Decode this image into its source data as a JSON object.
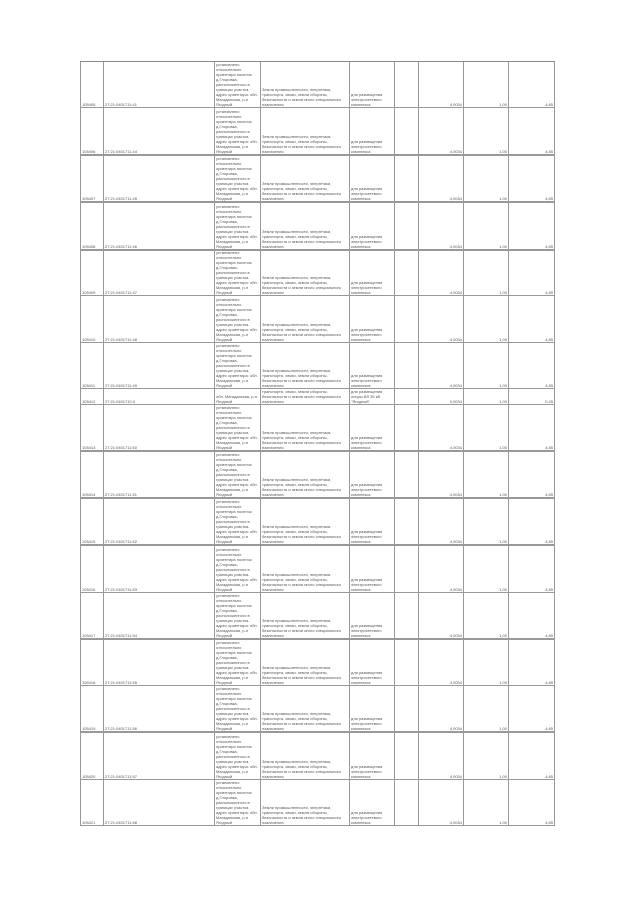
{
  "rows": [
    {
      "id": "105405",
      "cadastral": "27:21:0401711:41",
      "address": "установлено относительно ориентира поселок д.Глоровка, расположенного в границах участка. адрес ориентира: обл. Магаданская, р-н Ягодный",
      "category": "Земли промышленности, энергетики, транспорта, связи, земли обороны, безопасности и земли иного специального назначения",
      "use": "для размещения электросетевого комплекса",
      "area": "4,0034",
      "ratio": "1,00",
      "value": "4,85"
    },
    {
      "id": "105406",
      "cadastral": "27:21:0401711:44",
      "address": "установлено относительно ориентира поселок д.Глоровка, расположенного в границах участка. адрес ориентира: обл. Магаданская, р-н Ягодный",
      "category": "Земли промышленности, энергетики, транспорта, связи, земли обороны, безопасности и земли иного специального назначения",
      "use": "для размещения электросетевого комплекса",
      "area": "4,0034",
      "ratio": "1,00",
      "value": "4,85"
    },
    {
      "id": "105407",
      "cadastral": "27:21:0401711:45",
      "address": "установлено относительно ориентира поселок д.Глоровка, расположенного в границах участка. адрес ориентира: обл. Магаданская, р-н Ягодный",
      "category": "Земли промышленности, энергетики, транспорта, связи, земли обороны, безопасности и земли иного специального назначения",
      "use": "для размещения электросетевого комплекса",
      "area": "4,0034",
      "ratio": "1,00",
      "value": "4,85"
    },
    {
      "id": "105408",
      "cadastral": "27:21:0401711:46",
      "address": "установлено относительно ориентира поселок д.Глоровка, расположенного в границах участка. адрес ориентира: обл. Магаданская, р-н Ягодный",
      "category": "Земли промышленности, энергетики, транспорта, связи, земли обороны, безопасности и земли иного специального назначения",
      "use": "для размещения электросетевого комплекса",
      "area": "4,0034",
      "ratio": "1,00",
      "value": "4,85"
    },
    {
      "id": "105409",
      "cadastral": "27:21:0401711:47",
      "address": "установлено относительно ориентира поселок д.Глоровка, расположенного в границах участка. адрес ориентира: обл. Магаданская, р-н Ягодный",
      "category": "Земли промышленности, энергетики, транспорта, связи, земли обороны, безопасности и земли иного специального назначения",
      "use": "для размещения электросетевого комплекса",
      "area": "4,0034",
      "ratio": "1,00",
      "value": "4,85"
    },
    {
      "id": "105410",
      "cadastral": "27:21:0401711:48",
      "address": "установлено относительно ориентира поселок д.Глоровка, расположенного в границах участка. адрес ориентира: обл. Магаданская, р-н Ягодный",
      "category": "Земли промышленности, энергетики, транспорта, связи, земли обороны, безопасности и земли иного специального назначения",
      "use": "для размещения электросетевого комплекса",
      "area": "4,0034",
      "ratio": "1,00",
      "value": "4,85"
    },
    {
      "id": "105411",
      "cadastral": "27:21:0401711:49",
      "address": "установлено относительно ориентира поселок д.Глоровка, расположенного в границах участка. адрес ориентира: обл. Магаданская, р-н Ягодный",
      "category": "Земли промышленности, энергетики, транспорта, связи, земли обороны, безопасности и земли иного специального назначения",
      "use": "для размещения электросетевого комплекса",
      "area": "4,0034",
      "ratio": "1,00",
      "value": "4,85"
    },
    {
      "id": "105412",
      "cadastral": "27:21:0401710:3",
      "address": "обл. Магаданская, р-н Ягодный",
      "category": "Земли промышленности, энергетики, транспорта, связи, земли обороны, безопасности и земли иного специального назначения",
      "use": "для размещения опоры ВЛ 35 кВ \"Ягодный\"",
      "area": "0,0034",
      "ratio": "1,00",
      "value": "0,45"
    },
    {
      "id": "105413",
      "cadastral": "27:21:0401711:50",
      "address": "установлено относительно ориентира поселок д.Глоровка, расположенного в границах участка. адрес ориентира: обл. Магаданская, р-н Ягодный",
      "category": "Земли промышленности, энергетики, транспорта, связи, земли обороны, безопасности и земли иного специального назначения",
      "use": "для размещения электросетевого комплекса",
      "area": "4,0034",
      "ratio": "1,00",
      "value": "4,85"
    },
    {
      "id": "105414",
      "cadastral": "27:21:0401711:51",
      "address": "установлено относительно ориентира поселок д.Глоровка, расположенного в границах участка. адрес ориентира: обл. Магаданская, р-н Ягодный",
      "category": "Земли промышленности, энергетики, транспорта, связи, земли обороны, безопасности и земли иного специального назначения",
      "use": "для размещения электросетевого комплекса",
      "area": "4,0034",
      "ratio": "1,00",
      "value": "4,85"
    },
    {
      "id": "105415",
      "cadastral": "27:21:0401711:52",
      "address": "установлено относительно ориентира поселок д.Глоровка, расположенного в границах участка. адрес ориентира: обл. Магаданская, р-н Ягодный",
      "category": "Земли промышленности, энергетики, транспорта, связи, земли обороны, безопасности и земли иного специального назначения",
      "use": "для размещения электросетевого комплекса",
      "area": "4,0034",
      "ratio": "1,00",
      "value": "4,85"
    },
    {
      "id": "105416",
      "cadastral": "27:21:0401711:53",
      "address": "установлено относительно ориентира поселок д.Глоровка, расположенного в границах участка. адрес ориентира: обл. Магаданская, р-н Ягодный",
      "category": "Земли промышленности, энергетики, транспорта, связи, земли обороны, безопасности и земли иного специального назначения",
      "use": "для размещения электросетевого комплекса",
      "area": "4,0034",
      "ratio": "1,00",
      "value": "4,85"
    },
    {
      "id": "105417",
      "cadastral": "27:21:0401711:54",
      "address": "установлено относительно ориентира поселок д.Глоровка, расположенного в границах участка. адрес ориентира: обл. Магаданская, р-н Ягодный",
      "category": "Земли промышленности, энергетики, транспорта, связи, земли обороны, безопасности и земли иного специального назначения",
      "use": "для размещения электросетевого комплекса",
      "area": "4,0034",
      "ratio": "1,00",
      "value": "4,85"
    },
    {
      "id": "105418",
      "cadastral": "27:21:0401711:55",
      "address": "установлено относительно ориентира поселок д.Глоровка, расположенного в границах участка. адрес ориентира: обл. Магаданская, р-н Ягодный",
      "category": "Земли промышленности, энергетики, транспорта, связи, земли обороны, безопасности и земли иного специального назначения",
      "use": "для размещения электросетевого комплекса",
      "area": "4,0034",
      "ratio": "1,00",
      "value": "4,85"
    },
    {
      "id": "105419",
      "cadastral": "27:21:0401711:56",
      "address": "установлено относительно ориентира поселок д.Глоровка, расположенного в границах участка. адрес ориентира: обл. Магаданская, р-н Ягодный",
      "category": "Земли промышленности, энергетики, транспорта, связи, земли обороны, безопасности и земли иного специального назначения",
      "use": "для размещения электросетевого комплекса",
      "area": "4,0034",
      "ratio": "1,00",
      "value": "4,85"
    },
    {
      "id": "105420",
      "cadastral": "27:21:0401711:57",
      "address": "установлено относительно ориентира поселок д.Глоровка, расположенного в границах участка. адрес ориентира: обл. Магаданская, р-н Ягодный",
      "category": "Земли промышленности, энергетики, транспорта, связи, земли обороны, безопасности и земли иного специального назначения",
      "use": "для размещения электросетевого комплекса",
      "area": "4,0034",
      "ratio": "1,00",
      "value": "4,85"
    },
    {
      "id": "105421",
      "cadastral": "27:21:0401711:58",
      "address": "установлено относительно ориентира поселок д.Глоровка, расположенного в границах участка. адрес ориентира: обл. Магаданская, р-н Ягодный",
      "category": "Земли промышленности, энергетики, транспорта, связи, земли обороны, безопасности и земли иного специального назначения",
      "use": "для размещения электросетевого комплекса",
      "area": "4,0034",
      "ratio": "1,00",
      "value": "4,85"
    }
  ]
}
